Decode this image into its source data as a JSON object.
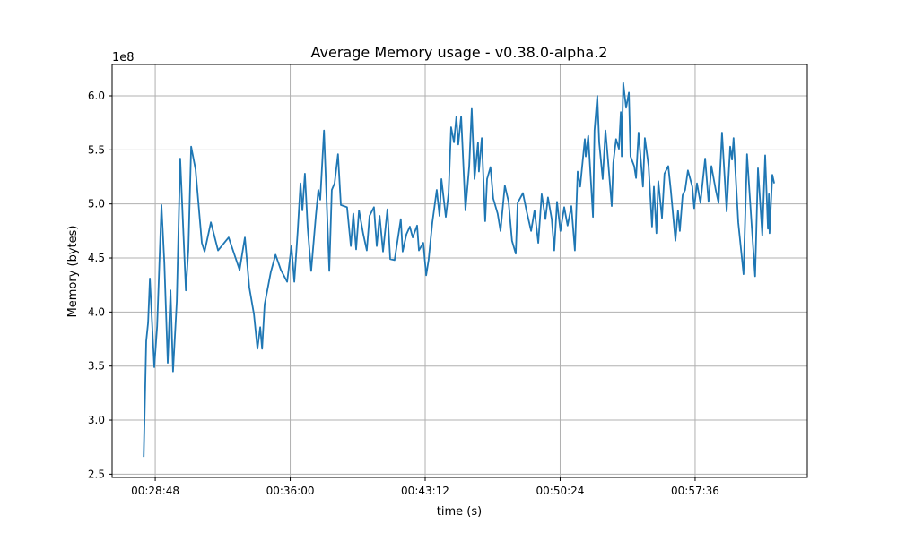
{
  "chart_data": {
    "type": "line",
    "title": "Average Memory usage  -  v0.38.0-alpha.2",
    "xlabel": "time (s)",
    "ylabel": "Memory (bytes)",
    "y_offset_label": "1e8",
    "xlim": [
      1590,
      3815
    ],
    "ylim": [
      2.47,
      6.29
    ],
    "grid": true,
    "line_color": "#1f77b4",
    "x_ticks": [
      {
        "value": 1728,
        "label": "00:28:48"
      },
      {
        "value": 2160,
        "label": "00:36:00"
      },
      {
        "value": 2592,
        "label": "00:43:12"
      },
      {
        "value": 3024,
        "label": "00:50:24"
      },
      {
        "value": 3456,
        "label": "00:57:36"
      }
    ],
    "y_ticks": [
      {
        "value": 2.5,
        "label": "2.5"
      },
      {
        "value": 3.0,
        "label": "3.0"
      },
      {
        "value": 3.5,
        "label": "3.5"
      },
      {
        "value": 4.0,
        "label": "4.0"
      },
      {
        "value": 4.5,
        "label": "4.5"
      },
      {
        "value": 5.0,
        "label": "5.0"
      },
      {
        "value": 5.5,
        "label": "5.5"
      },
      {
        "value": 6.0,
        "label": "6.0"
      }
    ],
    "x": [
      1691,
      1699,
      1705,
      1711,
      1725,
      1734,
      1748,
      1757,
      1768,
      1777,
      1785,
      1797,
      1808,
      1826,
      1834,
      1843,
      1857,
      1877,
      1886,
      1906,
      1929,
      1963,
      1998,
      2015,
      2029,
      2044,
      2055,
      2064,
      2070,
      2078,
      2098,
      2113,
      2130,
      2150,
      2164,
      2173,
      2184,
      2193,
      2199,
      2207,
      2216,
      2227,
      2242,
      2250,
      2256,
      2268,
      2273,
      2285,
      2293,
      2302,
      2313,
      2322,
      2342,
      2354,
      2362,
      2371,
      2380,
      2394,
      2405,
      2414,
      2428,
      2437,
      2446,
      2457,
      2471,
      2480,
      2494,
      2514,
      2520,
      2532,
      2543,
      2552,
      2566,
      2572,
      2586,
      2595,
      2603,
      2615,
      2629,
      2638,
      2644,
      2658,
      2667,
      2675,
      2684,
      2692,
      2698,
      2707,
      2721,
      2733,
      2741,
      2750,
      2761,
      2764,
      2773,
      2784,
      2790,
      2801,
      2810,
      2824,
      2833,
      2847,
      2859,
      2870,
      2882,
      2888,
      2905,
      2916,
      2931,
      2942,
      2954,
      2965,
      2977,
      2985,
      2997,
      3005,
      3014,
      3025,
      3037,
      3048,
      3060,
      3071,
      3080,
      3088,
      3103,
      3106,
      3114,
      3129,
      3134,
      3143,
      3149,
      3160,
      3169,
      3177,
      3189,
      3194,
      3203,
      3212,
      3218,
      3221,
      3226,
      3235,
      3244,
      3249,
      3261,
      3267,
      3275,
      3289,
      3295,
      3307,
      3318,
      3324,
      3332,
      3338,
      3350,
      3358,
      3370,
      3378,
      3393,
      3401,
      3407,
      3416,
      3424,
      3433,
      3447,
      3453,
      3462,
      3473,
      3488,
      3499,
      3508,
      3522,
      3531,
      3542,
      3557,
      3568,
      3574,
      3579,
      3594,
      3611,
      3622,
      3637,
      3648,
      3657,
      3671,
      3680,
      3689,
      3692,
      3694,
      3703,
      3709
    ],
    "y": [
      2.66,
      3.73,
      3.9,
      4.31,
      3.49,
      3.87,
      4.99,
      4.46,
      3.53,
      4.2,
      3.45,
      4.1,
      5.42,
      4.2,
      4.58,
      5.53,
      5.32,
      4.64,
      4.56,
      4.83,
      4.57,
      4.69,
      4.39,
      4.69,
      4.23,
      3.98,
      3.66,
      3.86,
      3.66,
      4.07,
      4.37,
      4.53,
      4.39,
      4.28,
      4.61,
      4.28,
      4.75,
      5.19,
      4.94,
      5.28,
      4.78,
      4.38,
      4.89,
      5.13,
      5.04,
      5.68,
      5.3,
      4.38,
      5.13,
      5.19,
      5.46,
      4.99,
      4.97,
      4.61,
      4.91,
      4.58,
      4.94,
      4.72,
      4.57,
      4.89,
      4.97,
      4.61,
      4.89,
      4.56,
      4.95,
      4.49,
      4.48,
      4.86,
      4.56,
      4.72,
      4.79,
      4.69,
      4.8,
      4.57,
      4.64,
      4.34,
      4.48,
      4.83,
      5.13,
      4.89,
      5.23,
      4.88,
      5.1,
      5.71,
      5.57,
      5.81,
      5.55,
      5.81,
      4.94,
      5.35,
      5.88,
      5.23,
      5.57,
      5.3,
      5.61,
      4.84,
      5.23,
      5.34,
      5.05,
      4.91,
      4.75,
      5.17,
      5.02,
      4.66,
      4.54,
      5.01,
      5.1,
      4.94,
      4.75,
      4.94,
      4.64,
      5.09,
      4.86,
      5.06,
      4.86,
      4.57,
      5.02,
      4.75,
      4.97,
      4.8,
      4.98,
      4.57,
      5.3,
      5.16,
      5.6,
      5.44,
      5.63,
      4.88,
      5.68,
      6.0,
      5.57,
      5.23,
      5.68,
      5.41,
      4.98,
      5.38,
      5.6,
      5.51,
      5.85,
      5.44,
      6.12,
      5.89,
      6.03,
      5.44,
      5.35,
      5.24,
      5.66,
      5.16,
      5.61,
      5.35,
      4.79,
      5.16,
      4.73,
      5.21,
      4.87,
      5.28,
      5.35,
      5.13,
      4.66,
      4.94,
      4.75,
      5.08,
      5.13,
      5.31,
      5.16,
      4.96,
      5.19,
      5.01,
      5.42,
      5.02,
      5.35,
      5.13,
      5.01,
      5.66,
      4.93,
      5.53,
      5.41,
      5.61,
      4.83,
      4.35,
      5.46,
      4.8,
      4.33,
      5.33,
      4.71,
      5.45,
      4.77,
      5.09,
      4.73,
      5.27,
      5.19
    ]
  }
}
